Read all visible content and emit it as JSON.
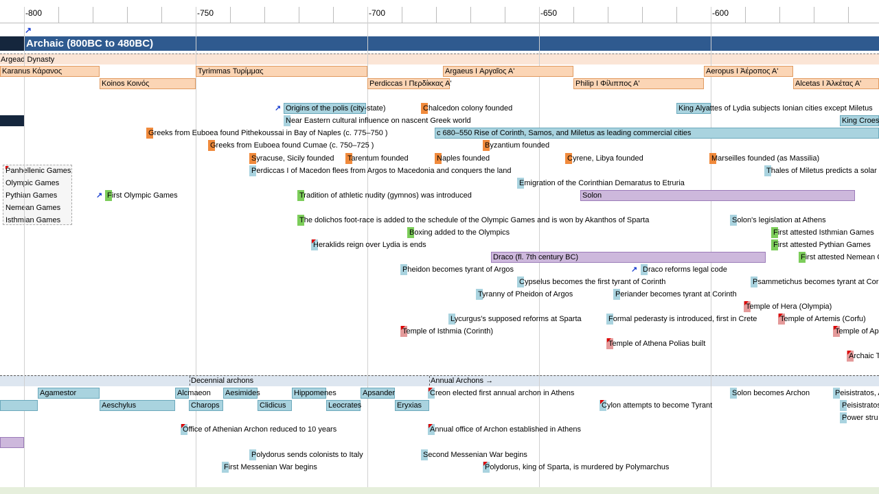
{
  "axis": {
    "ticks": [
      "-800",
      "-750",
      "-700",
      "-650",
      "-600"
    ]
  },
  "header": {
    "title": "Archaic (800BC to 480BC)"
  },
  "dynasty": {
    "label": "Argead Dynasty"
  },
  "legend": [
    "Panhellenic Games",
    "Olympic Games",
    "Pythian Games",
    "Nemean Games",
    "Isthmian Games"
  ],
  "archon_bands": [
    "Decennial archons",
    "Annual Archons →"
  ],
  "events": [
    "Karanus Κάρανος",
    "Tyrimmas Τυρίμμας",
    "Argaeus I Αργαῖος Α'",
    "Aeropus I Ἀέροπος Α'",
    "Koinos Κοινός",
    "Perdiccas I Περδίκκας Α'",
    "Philip I Φίλιππος Α'",
    "Alcetas I Ἀλκέτας Α'",
    "Origins of the polis (city-state)",
    "Chalcedon colony founded",
    "King Alyattes of Lydia subjects Ionian cities except Miletus",
    "Near Eastern cultural influence on nascent Greek world",
    "King Croes",
    "Greeks from Euboea found Pithekoussai in Bay of Naples (c. 775–750 )",
    "c 680–550 Rise of Corinth, Samos, and Miletus as leading commercial cities",
    "Greeks from Euboea found Cumae (c. 750–725 )",
    "Byzantium founded",
    "Syracuse, Sicily founded",
    "Tarentum founded",
    "Naples founded",
    "Cyrene, Libya founded",
    "Marseilles founded (as Massilia)",
    "Perdiccas I of Macedon flees from Argos to Macedonia and conquers the land",
    "Thales of Miletus predicts a solar e",
    "Emigration of the Corinthian Demaratus to Etruria",
    "First Olympic Games",
    "Tradition of athletic nudity (gymnos) was introduced",
    "Solon",
    "The dolichos foot-race is added to the schedule of the Olympic Games and is won by Akanthos of Sparta",
    "Solon's legislation at Athens",
    "Boxing added to the Olympics",
    "First attested Isthmian Games",
    "Heraklids reign over Lydia is ends",
    "First attested Pythian Games",
    "Draco (fl. 7th century BC)",
    "First attested Nemean G",
    "Pheidon becomes tyrant of Argos",
    "Draco reforms legal code",
    "Cypselus becomes the first tyrant of Corinth",
    "Psammetichus becomes tyrant at Cori",
    "Tyranny of Pheidon of Argos",
    "Periander becomes tyrant at Corinth",
    "Temple of Hera (Olympia)",
    "Lycurgus's supposed reforms at Sparta",
    "Formal pederasty is introduced, first in Crete",
    "Temple of Artemis (Corfu)",
    "Temple of Isthmia (Corinth)",
    "Temple of Ap",
    "Temple of Athena Polias built",
    "Archaic T",
    "Agamestor",
    "Alcmaeon",
    "Aesimides",
    "Hippomenes",
    "Apsander",
    "Creon elected first annual archon in Athens",
    "Solon becomes Archon",
    "Peisistratos, A",
    "Aeschylus",
    "Charops",
    "Clidicus",
    "Leocrates",
    "Eryxias",
    "Cylon attempts to become Tyrant",
    "Peisistratos",
    "Power stru",
    "Office of Athenian Archon reduced to 10 years",
    "Annual office of Archon established in Athens",
    "Polydorus sends colonists to Italy",
    "Second Messenian War begins",
    "First Messenian War begins",
    "Polydorus, king of Sparta, is murdered by Polymarchus"
  ]
}
